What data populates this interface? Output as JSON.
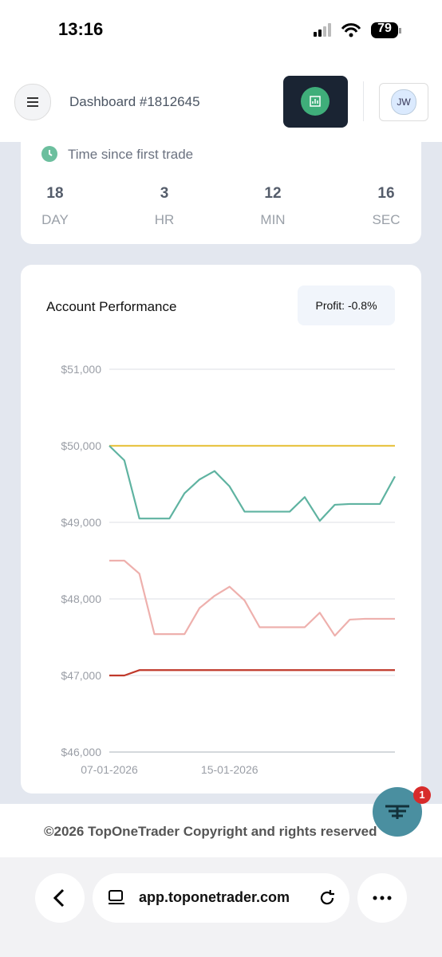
{
  "status_bar": {
    "time": "13:16",
    "battery": "79"
  },
  "header": {
    "title": "Dashboard #1812645",
    "avatar": "JW"
  },
  "timer": {
    "label": "Time since first trade",
    "units": [
      {
        "value": "18",
        "unit": "DAY"
      },
      {
        "value": "3",
        "unit": "HR"
      },
      {
        "value": "12",
        "unit": "MIN"
      },
      {
        "value": "16",
        "unit": "SEC"
      }
    ]
  },
  "performance": {
    "title": "Account Performance",
    "profit": "Profit: -0.8%"
  },
  "chart_data": {
    "type": "line",
    "categories": [
      "07-01-2026",
      null,
      null,
      null,
      null,
      null,
      null,
      null,
      "15-01-2026",
      null,
      null,
      null,
      null,
      null,
      null,
      null,
      null,
      null,
      null,
      null
    ],
    "series": [
      {
        "color": "#e8c547",
        "values": [
          50000,
          50000,
          50000,
          50000,
          50000,
          50000,
          50000,
          50000,
          50000,
          50000,
          50000,
          50000,
          50000,
          50000,
          50000,
          50000,
          50000,
          50000,
          50000,
          50000
        ]
      },
      {
        "color": "#5fb3a1",
        "values": [
          50000,
          49810,
          49050,
          49050,
          49050,
          49380,
          49560,
          49670,
          49470,
          49140,
          49140,
          49140,
          49140,
          49330,
          49020,
          49230,
          49240,
          49240,
          49240,
          49600
        ]
      },
      {
        "color": "#eeb0ad",
        "values": [
          48500,
          48500,
          48330,
          47540,
          47540,
          47540,
          47880,
          48040,
          48160,
          47980,
          47630,
          47630,
          47630,
          47630,
          47820,
          47520,
          47730,
          47740,
          47740,
          47740
        ]
      },
      {
        "color": "#c0392b",
        "values": [
          47000,
          47000,
          47070,
          47070,
          47070,
          47070,
          47070,
          47070,
          47070,
          47070,
          47070,
          47070,
          47070,
          47070,
          47070,
          47070,
          47070,
          47070,
          47070,
          47070
        ]
      }
    ],
    "ylim": [
      46000,
      51000
    ],
    "yticks": [
      {
        "value": 46000,
        "label": "$46,000"
      },
      {
        "value": 47000,
        "label": "$47,000"
      },
      {
        "value": 48000,
        "label": "$48,000"
      },
      {
        "value": 49000,
        "label": "$49,000"
      },
      {
        "value": 50000,
        "label": "$50,000"
      },
      {
        "value": 51000,
        "label": "$51,000"
      }
    ],
    "grid": true
  },
  "footer": {
    "copyright": "©2026 TopOneTrader Copyright and rights reserved",
    "badge": "1"
  },
  "browser": {
    "url": "app.toponetrader.com"
  }
}
